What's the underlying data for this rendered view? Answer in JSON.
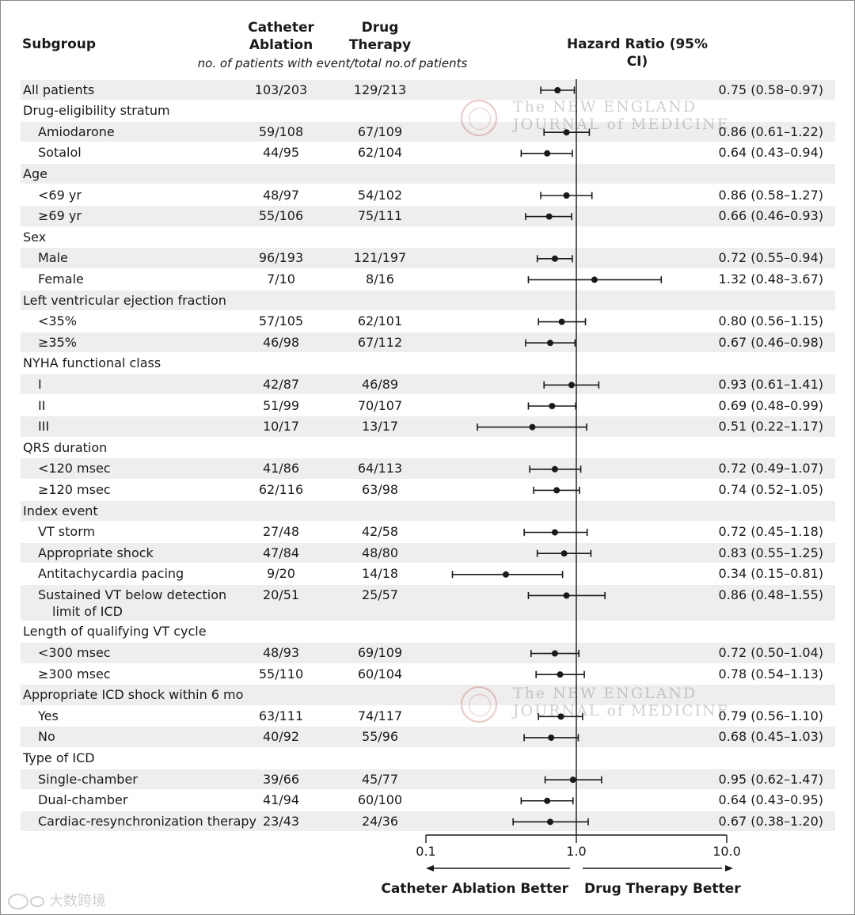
{
  "chart_data": {
    "type": "forest",
    "title": "Hazard Ratio (95% CI)",
    "columns": {
      "subgroup": "Subgroup",
      "catheter_ablation": "Catheter Ablation",
      "drug_therapy": "Drug Therapy",
      "note": "no. of patients with event/total no.of patients"
    },
    "xaxis": {
      "scale": "log",
      "ticks": [
        "0.1",
        "1.0",
        "10.0"
      ],
      "range": [
        0.1,
        10.0
      ],
      "reference": 1.0
    },
    "favor_left": "Catheter Ablation Better",
    "favor_right": "Drug Therapy Better",
    "rows": [
      {
        "label": "All patients",
        "indent": false,
        "band": true,
        "ca": "103/203",
        "dt": "129/213",
        "hr_text": "0.75 (0.58–0.97)",
        "hr": 0.75,
        "lo": 0.58,
        "hi": 0.97
      },
      {
        "label": "Drug-eligibility stratum",
        "indent": false,
        "band": false
      },
      {
        "label": "Amiodarone",
        "indent": true,
        "band": true,
        "ca": "59/108",
        "dt": "67/109",
        "hr_text": "0.86 (0.61–1.22)",
        "hr": 0.86,
        "lo": 0.61,
        "hi": 1.22
      },
      {
        "label": "Sotalol",
        "indent": true,
        "band": false,
        "ca": "44/95",
        "dt": "62/104",
        "hr_text": "0.64 (0.43–0.94)",
        "hr": 0.64,
        "lo": 0.43,
        "hi": 0.94
      },
      {
        "label": "Age",
        "indent": false,
        "band": true
      },
      {
        "label": "<69 yr",
        "indent": true,
        "band": false,
        "ca": "48/97",
        "dt": "54/102",
        "hr_text": "0.86 (0.58–1.27)",
        "hr": 0.86,
        "lo": 0.58,
        "hi": 1.27
      },
      {
        "label": "≥69 yr",
        "indent": true,
        "band": true,
        "ca": "55/106",
        "dt": "75/111",
        "hr_text": "0.66 (0.46–0.93)",
        "hr": 0.66,
        "lo": 0.46,
        "hi": 0.93
      },
      {
        "label": "Sex",
        "indent": false,
        "band": false
      },
      {
        "label": "Male",
        "indent": true,
        "band": true,
        "ca": "96/193",
        "dt": "121/197",
        "hr_text": "0.72 (0.55–0.94)",
        "hr": 0.72,
        "lo": 0.55,
        "hi": 0.94
      },
      {
        "label": "Female",
        "indent": true,
        "band": false,
        "ca": "7/10",
        "dt": "8/16",
        "hr_text": "1.32 (0.48–3.67)",
        "hr": 1.32,
        "lo": 0.48,
        "hi": 3.67
      },
      {
        "label": "Left ventricular ejection fraction",
        "indent": false,
        "band": true
      },
      {
        "label": "<35%",
        "indent": true,
        "band": false,
        "ca": "57/105",
        "dt": "62/101",
        "hr_text": "0.80 (0.56–1.15)",
        "hr": 0.8,
        "lo": 0.56,
        "hi": 1.15
      },
      {
        "label": "≥35%",
        "indent": true,
        "band": true,
        "ca": "46/98",
        "dt": "67/112",
        "hr_text": "0.67 (0.46–0.98)",
        "hr": 0.67,
        "lo": 0.46,
        "hi": 0.98
      },
      {
        "label": "NYHA functional class",
        "indent": false,
        "band": false
      },
      {
        "label": "I",
        "indent": true,
        "band": true,
        "ca": "42/87",
        "dt": "46/89",
        "hr_text": "0.93 (0.61–1.41)",
        "hr": 0.93,
        "lo": 0.61,
        "hi": 1.41
      },
      {
        "label": "II",
        "indent": true,
        "band": false,
        "ca": "51/99",
        "dt": "70/107",
        "hr_text": "0.69 (0.48–0.99)",
        "hr": 0.69,
        "lo": 0.48,
        "hi": 0.99
      },
      {
        "label": "III",
        "indent": true,
        "band": true,
        "ca": "10/17",
        "dt": "13/17",
        "hr_text": "0.51 (0.22–1.17)",
        "hr": 0.51,
        "lo": 0.22,
        "hi": 1.17
      },
      {
        "label": "QRS duration",
        "indent": false,
        "band": false
      },
      {
        "label": "<120 msec",
        "indent": true,
        "band": true,
        "ca": "41/86",
        "dt": "64/113",
        "hr_text": "0.72 (0.49–1.07)",
        "hr": 0.72,
        "lo": 0.49,
        "hi": 1.07
      },
      {
        "label": "≥120 msec",
        "indent": true,
        "band": false,
        "ca": "62/116",
        "dt": "63/98",
        "hr_text": "0.74 (0.52–1.05)",
        "hr": 0.74,
        "lo": 0.52,
        "hi": 1.05
      },
      {
        "label": "Index event",
        "indent": false,
        "band": true
      },
      {
        "label": "VT storm",
        "indent": true,
        "band": false,
        "ca": "27/48",
        "dt": "42/58",
        "hr_text": "0.72 (0.45–1.18)",
        "hr": 0.72,
        "lo": 0.45,
        "hi": 1.18
      },
      {
        "label": "Appropriate shock",
        "indent": true,
        "band": true,
        "ca": "47/84",
        "dt": "48/80",
        "hr_text": "0.83 (0.55–1.25)",
        "hr": 0.83,
        "lo": 0.55,
        "hi": 1.25
      },
      {
        "label": "Antitachycardia pacing",
        "indent": true,
        "band": false,
        "ca": "9/20",
        "dt": "14/18",
        "hr_text": "0.34 (0.15–0.81)",
        "hr": 0.34,
        "lo": 0.15,
        "hi": 0.81
      },
      {
        "label": "Sustained VT below detection",
        "label2": "limit of ICD",
        "indent": true,
        "band": true,
        "double": true,
        "ca": "20/51",
        "dt": "25/57",
        "hr_text": "0.86 (0.48–1.55)",
        "hr": 0.86,
        "lo": 0.48,
        "hi": 1.55
      },
      {
        "label": "Length of qualifying VT cycle",
        "indent": false,
        "band": false
      },
      {
        "label": "<300 msec",
        "indent": true,
        "band": true,
        "ca": "48/93",
        "dt": "69/109",
        "hr_text": "0.72 (0.50–1.04)",
        "hr": 0.72,
        "lo": 0.5,
        "hi": 1.04
      },
      {
        "label": "≥300 msec",
        "indent": true,
        "band": false,
        "ca": "55/110",
        "dt": "60/104",
        "hr_text": "0.78 (0.54–1.13)",
        "hr": 0.78,
        "lo": 0.54,
        "hi": 1.13
      },
      {
        "label": "Appropriate ICD shock within 6 mo",
        "indent": false,
        "band": true
      },
      {
        "label": "Yes",
        "indent": true,
        "band": false,
        "ca": "63/111",
        "dt": "74/117",
        "hr_text": "0.79 (0.56–1.10)",
        "hr": 0.79,
        "lo": 0.56,
        "hi": 1.1
      },
      {
        "label": "No",
        "indent": true,
        "band": true,
        "ca": "40/92",
        "dt": "55/96",
        "hr_text": "0.68 (0.45–1.03)",
        "hr": 0.68,
        "lo": 0.45,
        "hi": 1.03
      },
      {
        "label": "Type of ICD",
        "indent": false,
        "band": false
      },
      {
        "label": "Single-chamber",
        "indent": true,
        "band": true,
        "ca": "39/66",
        "dt": "45/77",
        "hr_text": "0.95 (0.62–1.47)",
        "hr": 0.95,
        "lo": 0.62,
        "hi": 1.47
      },
      {
        "label": "Dual-chamber",
        "indent": true,
        "band": false,
        "ca": "41/94",
        "dt": "60/100",
        "hr_text": "0.64 (0.43–0.95)",
        "hr": 0.64,
        "lo": 0.43,
        "hi": 0.95
      },
      {
        "label": "Cardiac-resynchronization therapy",
        "indent": true,
        "band": true,
        "ca": "23/43",
        "dt": "24/36",
        "hr_text": "0.67 (0.38–1.20)",
        "hr": 0.67,
        "lo": 0.38,
        "hi": 1.2
      }
    ]
  },
  "watermark": {
    "line1": "The NEW ENGLAND",
    "line2": "JOURNAL of MEDICINE"
  },
  "brand": "大数跨境",
  "colors": {
    "band": "#eeeeee",
    "ink": "#1a1a1a"
  }
}
